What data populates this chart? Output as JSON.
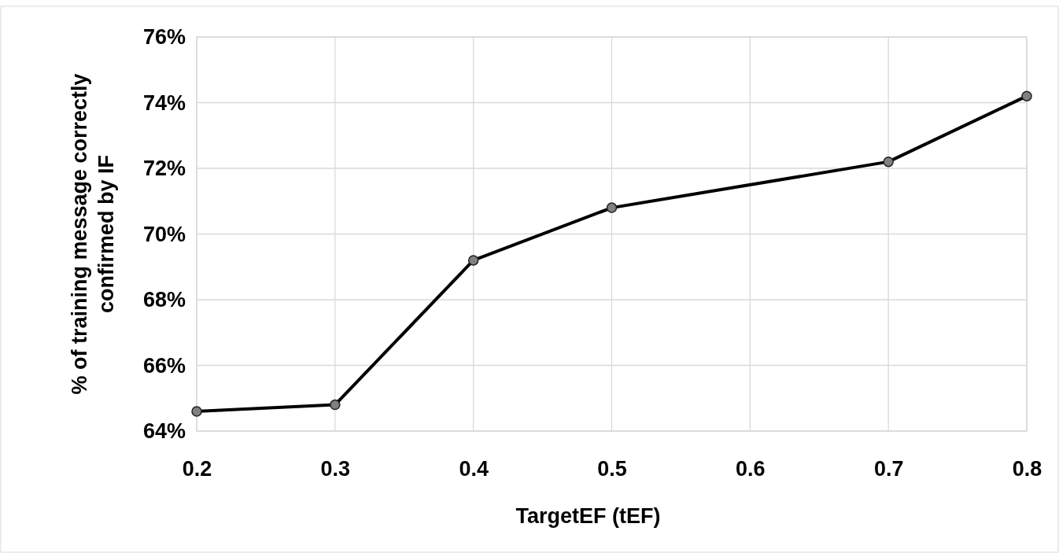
{
  "chart_data": {
    "type": "line",
    "xlabel": "TargetEF (tEF)",
    "ylabel": "% of training message correctly confirmed by IF",
    "x": [
      0.2,
      0.3,
      0.4,
      0.5,
      0.7,
      0.8
    ],
    "series": [
      {
        "color": "#000000",
        "values": [
          64.6,
          64.8,
          69.2,
          70.8,
          72.2,
          74.2
        ]
      }
    ],
    "xlim": [
      0.2,
      0.8
    ],
    "xticks": [
      0.2,
      0.3,
      0.4,
      0.5,
      0.6,
      0.7,
      0.8
    ],
    "ylim": [
      64,
      76
    ],
    "yticks": [
      {
        "value": 64,
        "label": "64%"
      },
      {
        "value": 66,
        "label": "66%"
      },
      {
        "value": 68,
        "label": "68%"
      },
      {
        "value": 70,
        "label": "70%"
      },
      {
        "value": 72,
        "label": "72%"
      },
      {
        "value": 74,
        "label": "74%"
      },
      {
        "value": 76,
        "label": "76%"
      }
    ],
    "grid": true,
    "marker": "circle",
    "line_style": "solid"
  }
}
